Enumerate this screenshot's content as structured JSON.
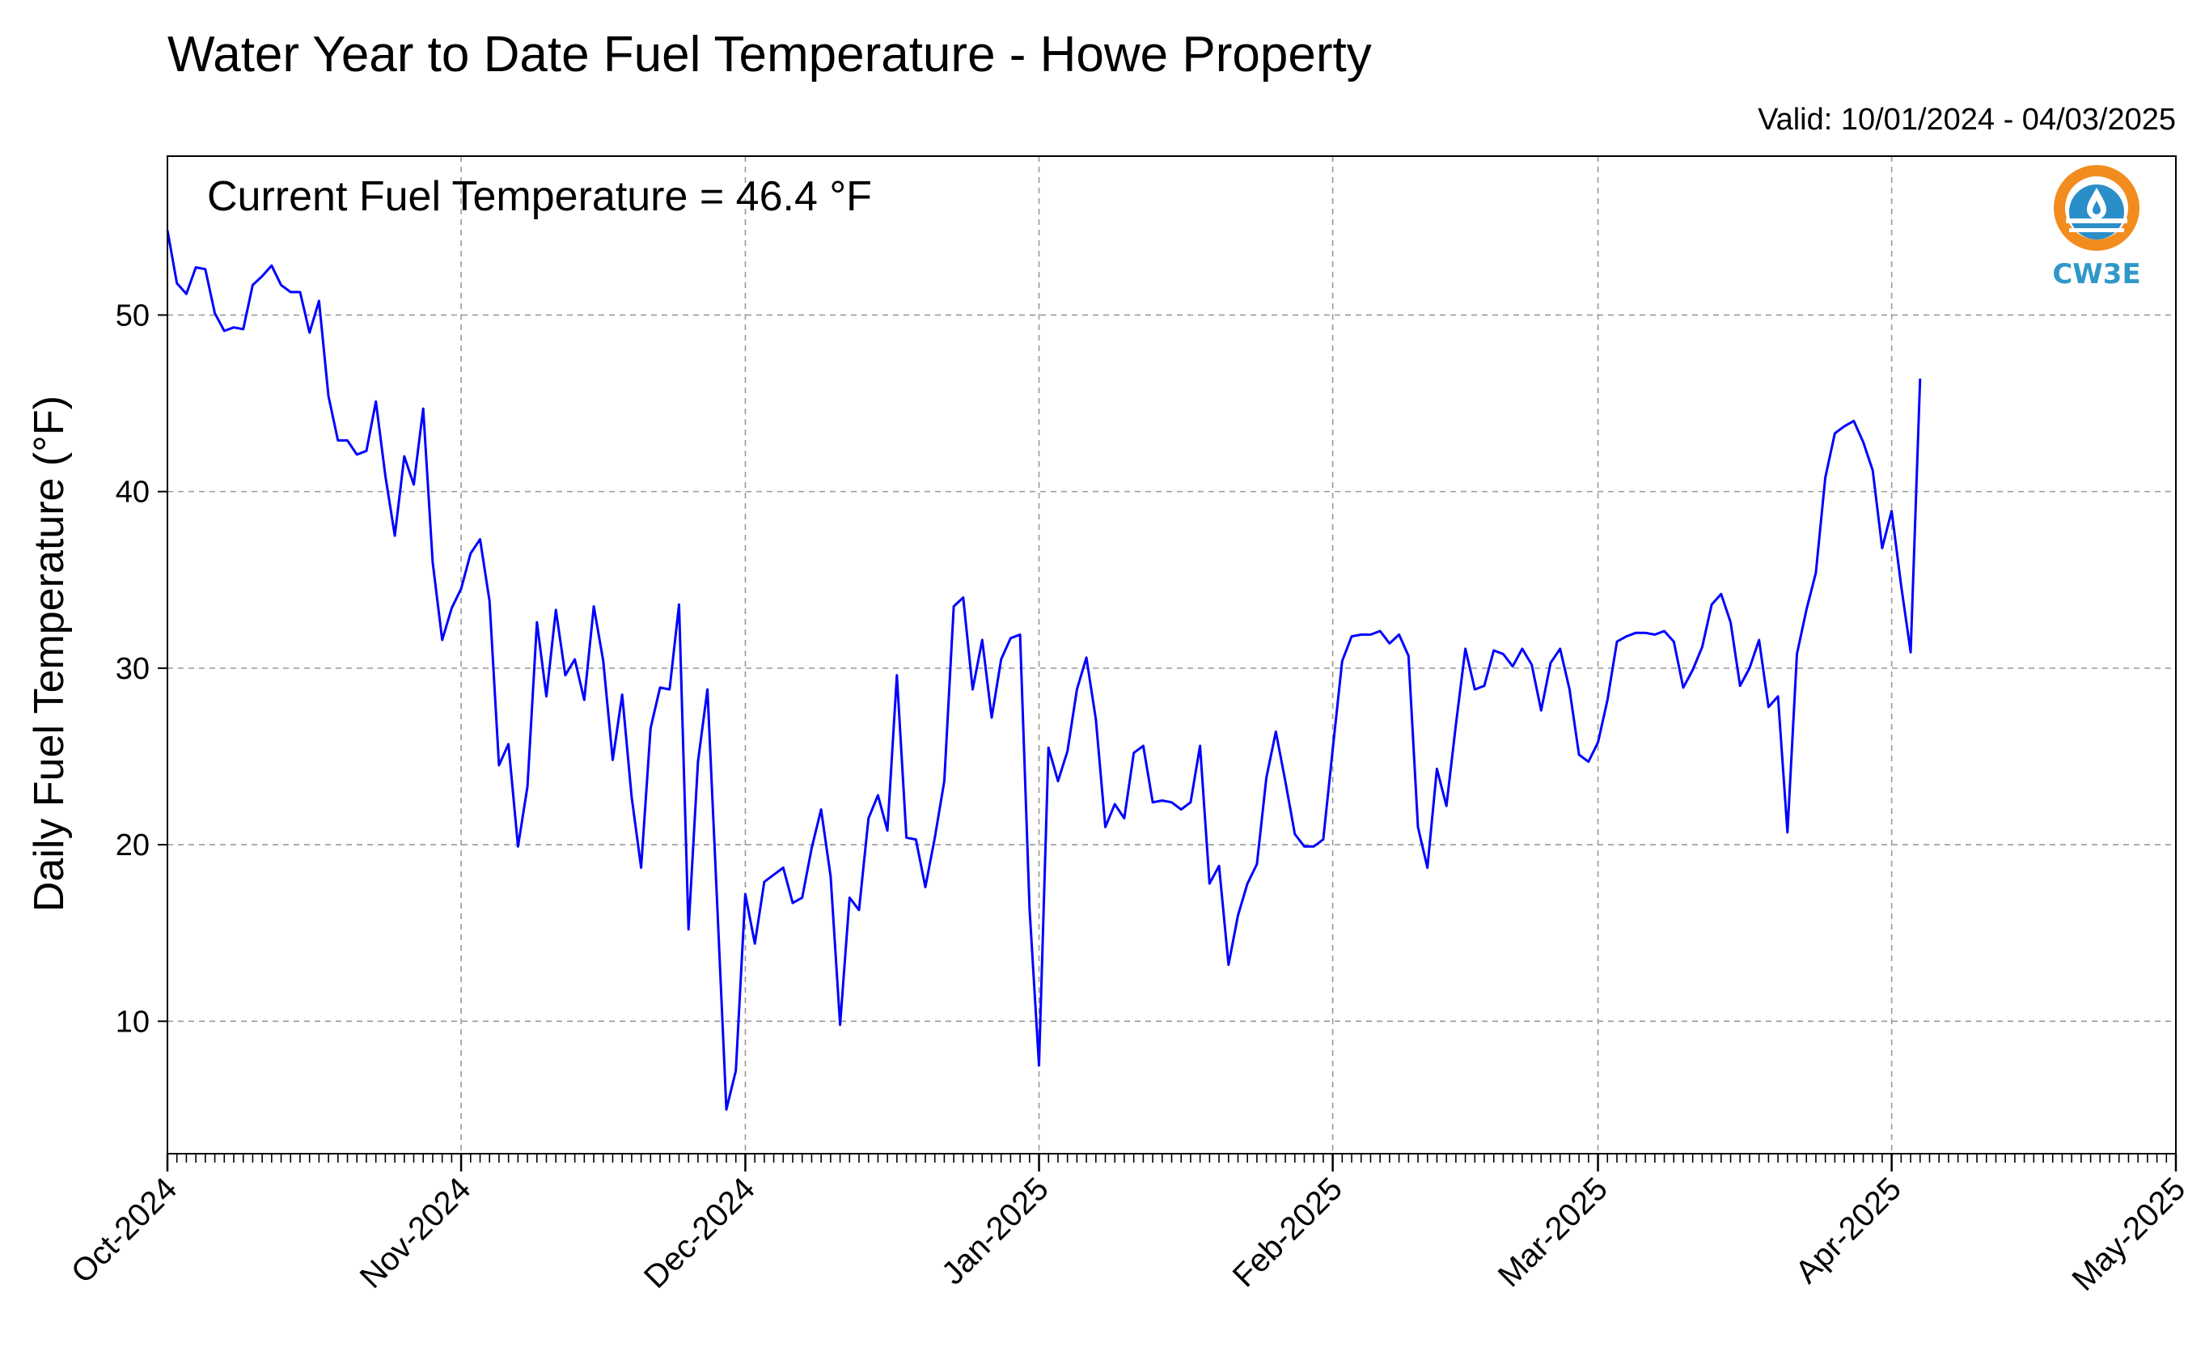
{
  "chart_data": {
    "type": "line",
    "title": "Water Year to Date Fuel Temperature - Howe Property",
    "valid_text": "Valid: 10/01/2024 - 04/03/2025",
    "annotation": "Current Fuel Temperature = 46.4 °F",
    "ylabel": "Daily Fuel Temperature (°F)",
    "xlabel": "",
    "xlim": [
      "2024-10-01",
      "2025-05-01"
    ],
    "ylim": [
      2.5,
      59
    ],
    "yticks": [
      10,
      20,
      30,
      40,
      50
    ],
    "xticks": [
      {
        "date": "2024-10-01",
        "label": "Oct-2024"
      },
      {
        "date": "2024-11-01",
        "label": "Nov-2024"
      },
      {
        "date": "2024-12-01",
        "label": "Dec-2024"
      },
      {
        "date": "2025-01-01",
        "label": "Jan-2025"
      },
      {
        "date": "2025-02-01",
        "label": "Feb-2025"
      },
      {
        "date": "2025-03-01",
        "label": "Mar-2025"
      },
      {
        "date": "2025-04-01",
        "label": "Apr-2025"
      },
      {
        "date": "2025-05-01",
        "label": "May-2025"
      }
    ],
    "grid": true,
    "line_color": "#0000ff",
    "grid_color": "#999999",
    "series": [
      {
        "start_date": "2024-10-01",
        "values": [
          54.8,
          51.8,
          51.2,
          52.7,
          52.6,
          50.1,
          49.1,
          49.3,
          49.2,
          51.7,
          52.2,
          52.8,
          51.7,
          51.3,
          51.3,
          49.0,
          50.8,
          45.4,
          42.9,
          42.9,
          42.1,
          42.3,
          45.1,
          40.9,
          37.5,
          42.0,
          40.4,
          44.7,
          36.0,
          31.6,
          33.4,
          34.5,
          36.5,
          37.3,
          33.8,
          24.5,
          25.7,
          19.9,
          23.3,
          32.6,
          28.4,
          33.3,
          29.6,
          30.5,
          28.2,
          33.5,
          30.4,
          24.8,
          28.5,
          22.7,
          18.7,
          26.6,
          28.9,
          28.8,
          33.6,
          15.2,
          24.7,
          28.8,
          17.0,
          5.0,
          7.2,
          17.2,
          14.4,
          17.9,
          18.3,
          18.7,
          16.7,
          17.0,
          19.8,
          22.0,
          18.2,
          9.8,
          17.0,
          16.3,
          21.5,
          22.8,
          20.8,
          29.6,
          20.4,
          20.3,
          17.6,
          20.4,
          23.6,
          33.5,
          34.0,
          28.8,
          31.6,
          27.2,
          30.5,
          31.7,
          31.9,
          16.4,
          7.5,
          25.5,
          23.6,
          25.3,
          28.8,
          30.6,
          27.1,
          21.0,
          22.3,
          21.5,
          25.2,
          25.6,
          22.4,
          22.5,
          22.4,
          22.0,
          22.4,
          25.6,
          17.8,
          18.8,
          13.2,
          16.0,
          17.8,
          18.9,
          23.8,
          26.4,
          23.6,
          20.6,
          19.9,
          19.9,
          20.3,
          25.4,
          30.4,
          31.8,
          31.9,
          31.9,
          32.1,
          31.4,
          31.9,
          30.7,
          21.0,
          18.7,
          24.3,
          22.2,
          26.8,
          31.1,
          28.8,
          29.0,
          31.0,
          30.8,
          30.1,
          31.1,
          30.2,
          27.6,
          30.3,
          31.1,
          28.8,
          25.1,
          24.7,
          25.8,
          28.2,
          31.5,
          31.8,
          32.0,
          32.0,
          31.9,
          32.1,
          31.5,
          28.9,
          29.9,
          31.2,
          33.6,
          34.2,
          32.6,
          29.0,
          30.0,
          31.6,
          27.8,
          28.4,
          20.7,
          30.8,
          33.3,
          35.4,
          40.8,
          43.3,
          43.7,
          44.0,
          42.8,
          41.2,
          36.8,
          38.9,
          34.7,
          30.9,
          46.4
        ]
      }
    ]
  },
  "logo": {
    "text": "CW3E",
    "colors": {
      "orange": "#f28c1e",
      "blue": "#2a8ec8",
      "teal": "#2f98c8"
    }
  }
}
